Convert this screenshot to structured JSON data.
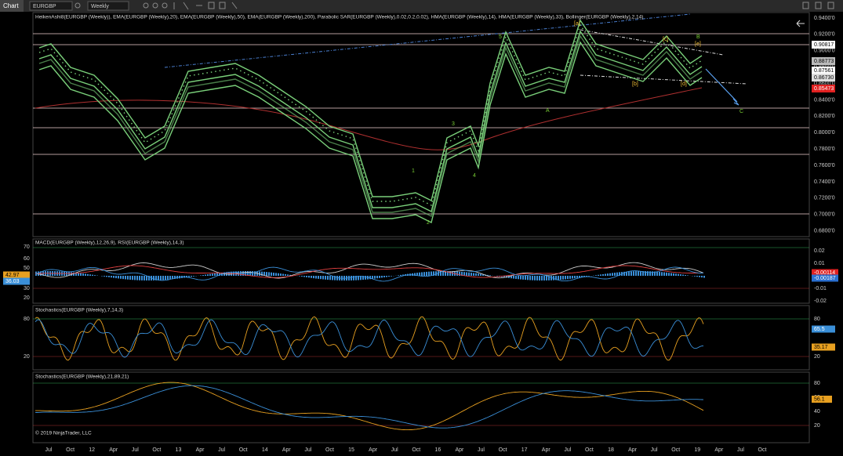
{
  "toolbar": {
    "tab": "Chart",
    "symbol": "EURGBP",
    "period": "Weekly"
  },
  "main_panel": {
    "title": "HeikenAshi8(EURGBP (Weekly)), EMA(EURGBP (Weekly),20), EMA(EURGBP (Weekly),50), EMA(EURGBP (Weekly),200), Parabolic SAR(EURGBP (Weekly),0.02,0.2,0.02), HMA(EURGBP (Weekly),14), HMA(EURGBP (Weekly),33), Bollinger(EURGBP (Weekly),2,14)",
    "price_axis": [
      "0.9400'0",
      "0.9200'0",
      "0.9000'0",
      "0.8800'0",
      "0.8600'0",
      "0.8400'0",
      "0.8200'0",
      "0.8000'0",
      "0.7800'0",
      "0.7600'0",
      "0.7400'0",
      "0.7200'0",
      "0.7000'0",
      "0.6800'0"
    ],
    "price_flags": [
      "0.90817",
      "0.88773",
      "0.87561",
      "0.86730",
      "0.85473"
    ],
    "wave_labels": [
      "1",
      "2",
      "3",
      "4",
      "5",
      "A",
      "B",
      "C",
      "[a]",
      "[b]",
      "[c]",
      "[d]",
      "[e]"
    ]
  },
  "macd_panel": {
    "title": "MACD(EURGBP (Weekly),12,26,9), RSI(EURGBP (Weekly),14,3)",
    "left_axis": [
      "70",
      "60",
      "50",
      "30",
      "20"
    ],
    "right_axis": [
      "0.02",
      "0.01",
      "-0.01",
      "-0.02"
    ],
    "flags": [
      "42.97",
      "36.03",
      "-0.00114",
      "-0.00187"
    ]
  },
  "stoch_panel": {
    "title": "Stochastics(EURGBP (Weekly),7,14,3)",
    "left_axis": [
      "80",
      "20"
    ],
    "right_axis": [
      "80",
      "20"
    ],
    "flags": [
      "65.5",
      "35.17"
    ]
  },
  "stoch2_panel": {
    "title": "Stochastics(EURGBP (Weekly),21,89,21)",
    "right_axis": [
      "80",
      "60",
      "40",
      "20"
    ],
    "flags": [
      "56.1"
    ],
    "copyright": "© 2019 NinjaTrader, LLC"
  },
  "time_axis": [
    "Jul",
    "Oct",
    "12",
    "Apr",
    "Jul",
    "Oct",
    "13",
    "Apr",
    "Jul",
    "Oct",
    "14",
    "Apr",
    "Jul",
    "Oct",
    "15",
    "Apr",
    "Jul",
    "Oct",
    "16",
    "Apr",
    "Jul",
    "Oct",
    "17",
    "Apr",
    "Jul",
    "Oct",
    "18",
    "Apr",
    "Jul",
    "Oct",
    "19",
    "Apr",
    "Jul",
    "Oct"
  ]
}
